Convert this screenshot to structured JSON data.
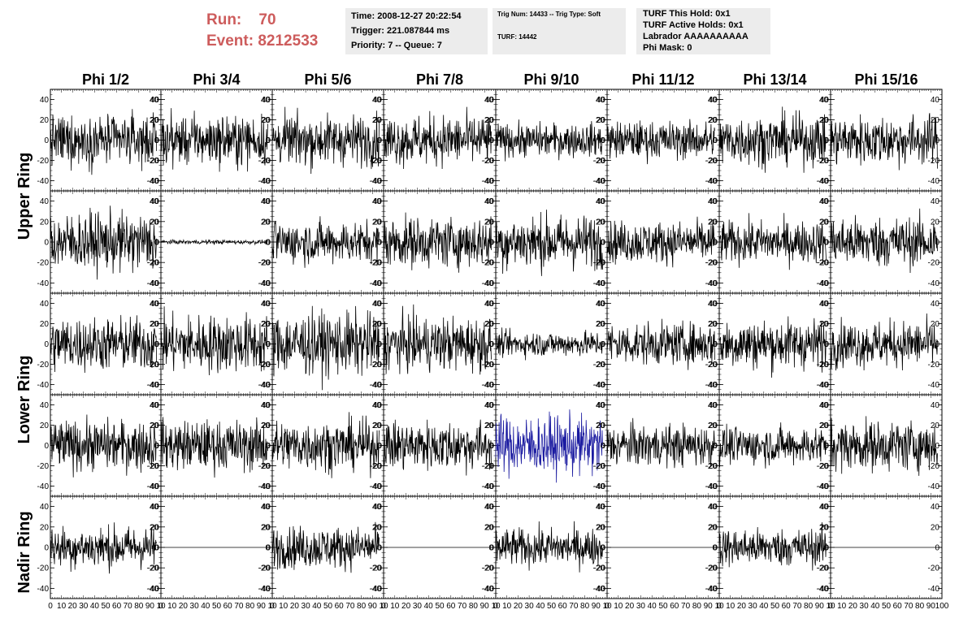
{
  "header": {
    "run_label": "Run:",
    "run_value": "70",
    "event_label": "Event:",
    "event_value": "8212533"
  },
  "info_box_1": {
    "time": "Time: 2008-12-27 20:22:54",
    "trigger": "Trigger: 221.087844 ms",
    "priority": "Priority: 7 -- Queue: 7"
  },
  "info_box_2": {
    "trig": "Trig Num: 14433 -- Trig Type: Soft",
    "turf": "TURF: 14442"
  },
  "info_box_3": {
    "hold": "TURF This Hold: 0x1",
    "active": "TURF Active Holds: 0x1",
    "labrador": "Labrador AAAAAAAAAA",
    "phi_mask": "Phi Mask: 0"
  },
  "colors": {
    "header_red": "#cd5c5c",
    "trace_black": "#000000",
    "trace_blue": "#1a1aa0",
    "panel_bg": "#ececec"
  },
  "chart_data": {
    "type": "line",
    "columns": [
      "Phi 1/2",
      "Phi 3/4",
      "Phi 5/6",
      "Phi 7/8",
      "Phi 9/10",
      "Phi 11/12",
      "Phi 13/14",
      "Phi 15/16"
    ],
    "ring_labels": [
      {
        "text": "Upper Ring",
        "rows": [
          0,
          1
        ]
      },
      {
        "text": "Lower Ring",
        "rows": [
          2,
          3
        ]
      },
      {
        "text": "Nadir Ring",
        "rows": [
          4
        ]
      }
    ],
    "xlim": [
      0,
      100
    ],
    "ylim": [
      -50,
      50
    ],
    "y_ticks": [
      -40,
      -20,
      0,
      20,
      40
    ],
    "x_tick_labels": [
      "0",
      "10",
      "20",
      "30",
      "40",
      "50",
      "60",
      "70",
      "80",
      "90",
      "100"
    ],
    "x_tick_text": [
      "0",
      "10",
      "20",
      "30",
      "40",
      "50",
      "60",
      "70",
      "80",
      "90",
      "10"
    ],
    "x_tick_text_last": [
      "0",
      "10",
      "20",
      "30",
      "40",
      "50",
      "60",
      "70",
      "80",
      "90",
      "100"
    ],
    "samples_per_trace": 260,
    "trace_x_range": [
      0,
      96
    ],
    "waveform_amplitude_rms": [
      [
        12,
        12,
        12,
        12,
        8,
        9,
        12,
        12
      ],
      [
        14,
        1,
        10,
        12,
        13,
        10,
        10,
        12
      ],
      [
        13,
        14,
        15,
        13,
        6,
        10,
        12,
        11
      ],
      [
        12,
        12,
        12,
        12,
        14,
        10,
        9,
        12
      ],
      [
        10,
        0,
        10,
        0,
        9,
        0,
        9,
        0
      ]
    ],
    "highlighted_channel": {
      "row": 3,
      "col": 4,
      "color": "#1a1aa0"
    },
    "flat_channels": [
      [
        4,
        1
      ],
      [
        4,
        3
      ],
      [
        4,
        5
      ],
      [
        4,
        7
      ]
    ],
    "quiet_channels": [
      [
        1,
        1
      ]
    ]
  }
}
